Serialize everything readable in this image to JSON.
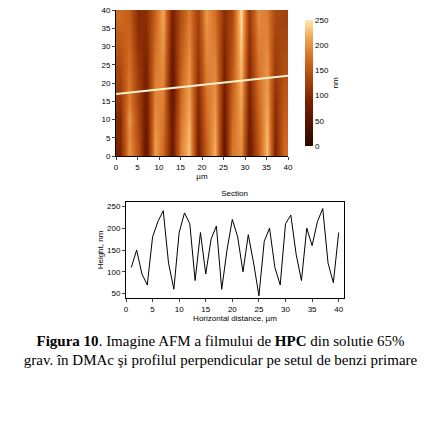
{
  "chart_data": [
    {
      "type": "heatmap",
      "x": [
        1,
        3,
        5,
        7,
        9,
        11,
        13,
        15,
        17,
        19,
        21,
        23,
        25,
        27,
        29,
        31,
        33,
        35,
        37,
        39
      ],
      "y": [
        2,
        6,
        10,
        14,
        18,
        22,
        26,
        30,
        34,
        38
      ],
      "z": [
        [
          90,
          200,
          150,
          60,
          210,
          170,
          70,
          190,
          230,
          80,
          160,
          220,
          60,
          180,
          200,
          70,
          150,
          230,
          90,
          170
        ],
        [
          100,
          195,
          140,
          65,
          205,
          175,
          75,
          185,
          225,
          85,
          165,
          215,
          65,
          175,
          205,
          75,
          155,
          225,
          95,
          165
        ],
        [
          95,
          205,
          135,
          70,
          200,
          180,
          70,
          180,
          220,
          90,
          170,
          210,
          70,
          170,
          210,
          80,
          160,
          220,
          100,
          160
        ],
        [
          110,
          190,
          130,
          75,
          195,
          185,
          65,
          175,
          215,
          95,
          175,
          205,
          75,
          165,
          215,
          85,
          165,
          215,
          105,
          155
        ],
        [
          120,
          185,
          125,
          80,
          190,
          190,
          60,
          170,
          210,
          100,
          180,
          200,
          80,
          160,
          220,
          90,
          170,
          210,
          110,
          150
        ],
        [
          130,
          180,
          120,
          85,
          185,
          195,
          65,
          165,
          205,
          105,
          185,
          195,
          85,
          155,
          225,
          95,
          175,
          205,
          115,
          145
        ],
        [
          140,
          175,
          115,
          90,
          180,
          200,
          70,
          160,
          200,
          110,
          190,
          190,
          90,
          150,
          230,
          100,
          180,
          200,
          120,
          140
        ],
        [
          150,
          170,
          110,
          95,
          175,
          205,
          75,
          155,
          195,
          115,
          195,
          185,
          95,
          145,
          235,
          105,
          185,
          195,
          125,
          135
        ],
        [
          160,
          165,
          105,
          100,
          170,
          210,
          80,
          150,
          190,
          120,
          200,
          180,
          100,
          140,
          240,
          110,
          190,
          190,
          130,
          130
        ],
        [
          170,
          160,
          100,
          105,
          165,
          215,
          85,
          145,
          185,
          125,
          205,
          175,
          105,
          135,
          245,
          115,
          195,
          185,
          135,
          125
        ]
      ],
      "xlim": [
        0,
        40
      ],
      "ylim": [
        0,
        40
      ],
      "xticks": [
        0,
        5,
        10,
        15,
        20,
        25,
        30,
        35,
        40
      ],
      "yticks": [
        0,
        5,
        10,
        15,
        20,
        25,
        30,
        35,
        40
      ],
      "x_label": "µm",
      "colorbar": {
        "range": [
          0,
          250
        ],
        "ticks": [
          0,
          50,
          100,
          150,
          200,
          250
        ],
        "label": "nm"
      },
      "section_line": {
        "x": [
          0,
          40
        ],
        "y": [
          17,
          22
        ]
      }
    },
    {
      "type": "line",
      "title": "Section",
      "x": [
        1,
        2,
        3,
        4,
        5,
        6,
        7,
        8,
        9,
        10,
        11,
        12,
        13,
        14,
        15,
        16,
        17,
        18,
        19,
        20,
        21,
        22,
        23,
        24,
        25,
        26,
        27,
        28,
        29,
        30,
        31,
        32,
        33,
        34,
        35,
        36,
        37,
        38,
        39,
        40
      ],
      "values": [
        110,
        150,
        95,
        70,
        180,
        215,
        240,
        120,
        60,
        190,
        235,
        210,
        80,
        190,
        95,
        175,
        205,
        60,
        150,
        220,
        180,
        100,
        185,
        120,
        45,
        170,
        200,
        110,
        70,
        210,
        230,
        140,
        80,
        200,
        160,
        215,
        245,
        120,
        75,
        190
      ],
      "color": "#000000",
      "xlim": [
        0,
        41
      ],
      "ylim": [
        40,
        260
      ],
      "xticks": [
        0,
        5,
        10,
        15,
        20,
        25,
        30,
        35,
        40
      ],
      "yticks": [
        50,
        100,
        150,
        200,
        250
      ],
      "x_label": "Horizontal distance, µm",
      "y_label": "Height, nm"
    }
  ],
  "caption": [
    {
      "text": "Figura 10",
      "bold": true
    },
    {
      "text": ". Imagine AFM a filmului de ",
      "bold": false
    },
    {
      "text": "HPC",
      "bold": true
    },
    {
      "text": " din solutie 65% grav. în DMAc şi profilul perpendicular pe setul de benzi primare",
      "bold": false
    }
  ]
}
